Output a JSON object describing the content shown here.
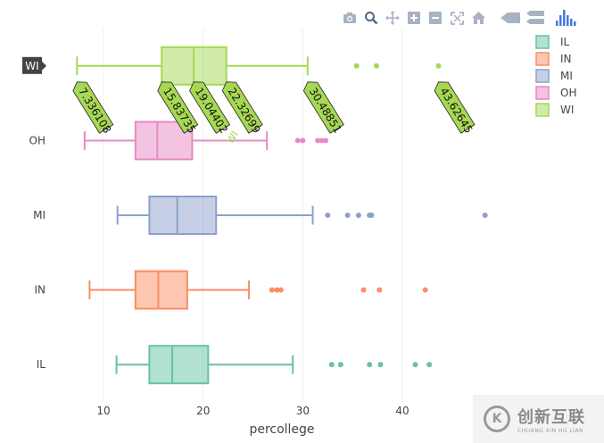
{
  "modebar": {
    "buttons": [
      {
        "icon": "camera-icon",
        "label": "Download plot as a png"
      },
      {
        "icon": "zoom-icon",
        "label": "Zoom"
      },
      {
        "icon": "pan-icon",
        "label": "Pan"
      },
      {
        "icon": "zoom-in-icon",
        "label": "Zoom in"
      },
      {
        "icon": "zoom-out-icon",
        "label": "Zoom out"
      },
      {
        "icon": "autoscale-icon",
        "label": "Autoscale"
      },
      {
        "icon": "home-icon",
        "label": "Reset axes"
      },
      {
        "icon": "spike-lines-icon",
        "label": "Toggle Spike Lines"
      },
      {
        "icon": "hover-compare-icon",
        "label": "Compare data on hover"
      },
      {
        "icon": "plotly-logo-icon",
        "label": "Produced with Plotly"
      }
    ],
    "icon_color": "#a8b3c2",
    "logo_color": "#447adb"
  },
  "chart_data": {
    "type": "box",
    "orientation": "horizontal",
    "xlabel": "percollege",
    "ylabel": "",
    "xlim": [
      4.8,
      52
    ],
    "xticks": [
      10,
      20,
      30,
      40
    ],
    "grid": true,
    "legend_position": "top-right",
    "categories": [
      "IL",
      "IN",
      "MI",
      "OH",
      "WI"
    ],
    "series": [
      {
        "name": "IL",
        "color": "#66c2a5",
        "fill": "rgba(102,194,165,0.5)",
        "lower_fence": 11.3,
        "q1": 14.6,
        "median": 16.9,
        "q3": 20.5,
        "upper_fence": 29.0,
        "outliers": [
          32.9,
          33.8,
          36.7,
          37.8,
          41.3,
          42.7
        ]
      },
      {
        "name": "IN",
        "color": "#fc8d62",
        "fill": "rgba(252,141,98,0.5)",
        "lower_fence": 8.6,
        "q1": 13.2,
        "median": 15.5,
        "q3": 18.4,
        "upper_fence": 24.6,
        "outliers": [
          26.9,
          27.4,
          27.8,
          36.1,
          37.7,
          42.3
        ]
      },
      {
        "name": "MI",
        "color": "#8da0cb",
        "fill": "rgba(141,160,203,0.5)",
        "lower_fence": 11.4,
        "q1": 14.6,
        "median": 17.4,
        "q3": 21.3,
        "upper_fence": 31.0,
        "outliers": [
          32.5,
          34.5,
          35.6,
          36.7,
          36.9,
          48.3
        ]
      },
      {
        "name": "OH",
        "color": "#e78ac3",
        "fill": "rgba(231,138,195,0.5)",
        "lower_fence": 8.1,
        "q1": 13.2,
        "median": 15.4,
        "q3": 18.9,
        "upper_fence": 26.4,
        "outliers": [
          29.5,
          30.0,
          31.5,
          31.9,
          32.3
        ]
      },
      {
        "name": "WI",
        "color": "#a6d854",
        "fill": "rgba(166,216,84,0.5)",
        "lower_fence": 7.336108,
        "q1": 15.83735,
        "median": 19.04402,
        "q3": 22.32699,
        "upper_fence": 30.48851,
        "outliers": [
          35.4,
          37.4,
          43.62645
        ]
      }
    ],
    "hover": {
      "category": "WI",
      "y_label": "WI",
      "trace_label": "WI",
      "labels": [
        {
          "text": "7.336108",
          "value": 7.336108
        },
        {
          "text": "15.83735",
          "value": 15.83735
        },
        {
          "text": "19.04402",
          "value": 19.04402
        },
        {
          "text": "22.32699",
          "value": 22.32699
        },
        {
          "text": "30.48851",
          "value": 30.48851
        },
        {
          "text": "43.62645",
          "value": 43.62645
        }
      ]
    }
  },
  "watermark": {
    "logo_glyph": "K",
    "text_cn": "创新互联",
    "text_en": "CHUANG XIN HU LIAN"
  }
}
